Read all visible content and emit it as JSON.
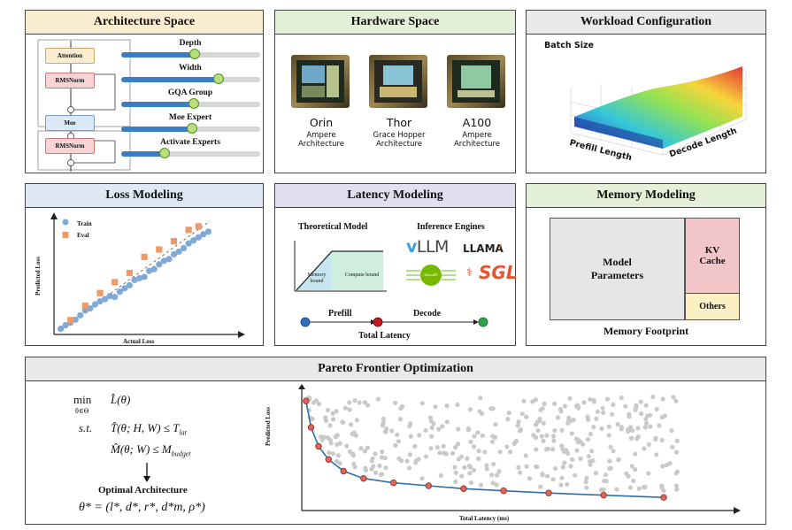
{
  "panels": {
    "architecture": {
      "title": "Architecture Space",
      "blocks": [
        "Attention",
        "RMSNorm",
        "Moe",
        "RMSNorm"
      ],
      "sliders": [
        {
          "label": "Depth",
          "value": 0.53
        },
        {
          "label": "Width",
          "value": 0.7
        },
        {
          "label": "GQA Group",
          "value": 0.52
        },
        {
          "label": "Moe Expert",
          "value": 0.51
        },
        {
          "label": "Activate Experts",
          "value": 0.31
        }
      ]
    },
    "hardware": {
      "title": "Hardware Space",
      "chips": [
        {
          "name": "Orin",
          "line1": "Ampere",
          "line2": "Architecture"
        },
        {
          "name": "Thor",
          "line1": "Grace Hopper",
          "line2": "Architecture"
        },
        {
          "name": "A100",
          "line1": "Ampere",
          "line2": "Architecture"
        }
      ]
    },
    "workload": {
      "title": "Workload Configuration",
      "z_label": "Batch Size",
      "x_label": "Prefill Length",
      "y_label": "Decode Length"
    },
    "loss": {
      "title": "Loss Modeling",
      "legend_train": "Train",
      "legend_eval": "Eval",
      "xlabel": "Actual Loss",
      "ylabel": "Predicted Loss"
    },
    "latency": {
      "title": "Latency Modeling",
      "theory_title": "Theoretical Model",
      "engines_title": "Inference Engines",
      "memory_bound": "Memory bound",
      "compute_bound": "Compute bound",
      "engine_vllm_v": "v",
      "engine_vllm": "LLM",
      "engine_llama": "LLAMA",
      "engine_tensorrt": "TensorRT",
      "engine_sgl": "SGL",
      "prefill": "Prefill",
      "decode": "Decode",
      "total": "Total Latency"
    },
    "memory": {
      "title": "Memory Modeling",
      "params": "Model\nParameters",
      "kv": "KV\nCache",
      "others": "Others",
      "footer": "Memory Footprint",
      "colors": {
        "params": "#e6e6e6",
        "kv": "#f2c6c9",
        "others": "#fbefc4"
      }
    },
    "pareto": {
      "title": "Pareto Frontier Optimization",
      "min": "min",
      "min_sub": "θ∈Θ",
      "objective": "L̂(θ)",
      "st": "s.t.",
      "c1": "T̂(θ; H, W) ≤ T",
      "c1_sub": "lat",
      "c2": "M̂(θ; W) ≤ M",
      "c2_sub": "budget",
      "optimal_title": "Optimal Architecture",
      "optimal_formula": "θ* = (l*, d*, r*, d*m, ρ*)",
      "xlabel": "Total Latency (ms)",
      "ylabel": "Predicted Loss"
    }
  },
  "chart_data": [
    {
      "type": "scatter",
      "series": [
        {
          "name": "Train",
          "color": "#7fa9d6",
          "x": [
            1,
            2,
            3,
            4,
            5,
            6,
            7,
            8,
            9,
            10,
            11,
            12,
            13,
            14,
            15,
            16,
            17,
            18,
            19,
            20,
            21,
            22,
            23,
            24,
            25,
            26,
            27,
            28,
            29,
            30,
            31
          ],
          "y": [
            1.3,
            2.1,
            2.7,
            3.4,
            4.4,
            5.5,
            6.0,
            6.9,
            7.6,
            8.1,
            8.8,
            8.6,
            9.8,
            10.6,
            11.3,
            12.5,
            12.9,
            13.2,
            14.6,
            15.0,
            16.1,
            16.9,
            17.3,
            18.4,
            19.0,
            19.8,
            20.9,
            21.6,
            22.3,
            23.0,
            23.6
          ]
        },
        {
          "name": "Eval",
          "color": "#ef9a6a",
          "x": [
            3,
            6,
            9,
            12,
            15,
            18,
            21,
            24,
            27,
            29
          ],
          "y": [
            3.3,
            6.6,
            9.5,
            12.0,
            14.1,
            17.8,
            19.5,
            21.4,
            24.0,
            24.8
          ]
        }
      ]
    },
    {
      "type": "scatter",
      "series": [
        {
          "name": "Pareto frontier",
          "color": "#e0655a",
          "x": [
            0.5,
            1.5,
            3,
            5,
            8,
            12,
            18,
            25,
            32,
            40,
            49,
            60,
            72
          ],
          "y": [
            95,
            77,
            64,
            55,
            47,
            42,
            39,
            37,
            35,
            33.5,
            32,
            30.5,
            29
          ]
        }
      ]
    }
  ]
}
